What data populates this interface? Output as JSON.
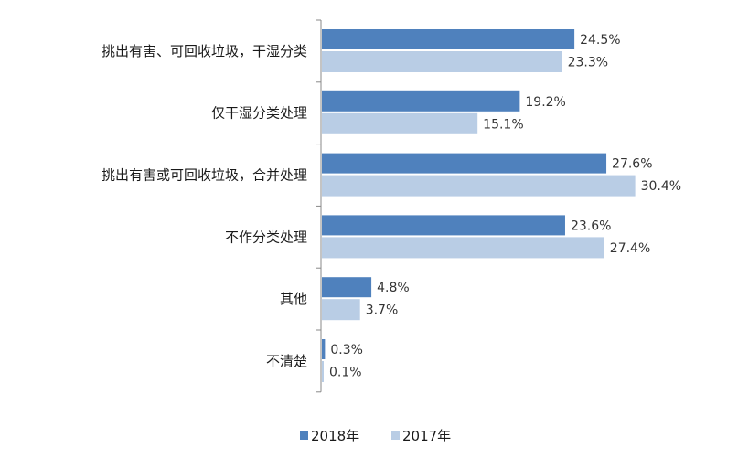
{
  "chart_data": {
    "type": "bar",
    "orientation": "horizontal",
    "categories": [
      "挑出有害、可回收垃圾，干湿分类",
      "仅干湿分类处理",
      "挑出有害或可回收垃圾，合并处理",
      "不作分类处理",
      "其他",
      "不清楚"
    ],
    "series": [
      {
        "name": "2018年",
        "values": [
          24.5,
          19.2,
          27.6,
          23.6,
          4.8,
          0.3
        ],
        "labels": [
          "24.5%",
          "19.2%",
          "27.6%",
          "23.6%",
          "4.8%",
          "0.3%"
        ],
        "color": "#4f81bd"
      },
      {
        "name": "2017年",
        "values": [
          23.3,
          15.1,
          30.4,
          27.4,
          3.7,
          0.1
        ],
        "labels": [
          "23.3%",
          "15.1%",
          "30.4%",
          "27.4%",
          "3.7%",
          "0.1%"
        ],
        "color": "#b9cde5"
      }
    ],
    "title": "",
    "xlabel": "",
    "ylabel": "",
    "xlim": [
      0,
      35
    ],
    "grid": false,
    "legend": "bottom",
    "data_labels": true
  }
}
